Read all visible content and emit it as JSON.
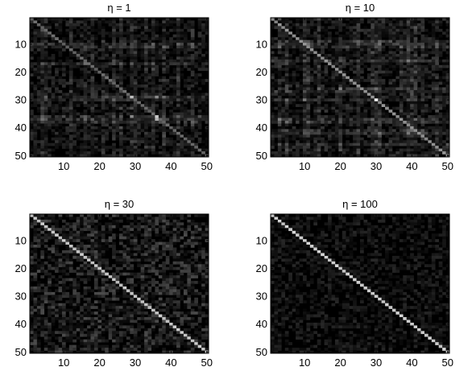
{
  "figure": {
    "background": "#ffffff",
    "colormap": "gray"
  },
  "chart_data": [
    {
      "type": "heatmap",
      "title": "η = 1",
      "xlabel": "",
      "ylabel": "",
      "size": [
        50,
        50
      ],
      "xlim": [
        0.5,
        50.5
      ],
      "ylim": [
        0.5,
        50.5
      ],
      "x_ticks": [
        10,
        20,
        30,
        40,
        50
      ],
      "y_ticks": [
        10,
        20,
        30,
        40,
        50
      ],
      "grid": false,
      "diagonal_intensity": 0.45,
      "diagonal_range": [
        0,
        0.7
      ],
      "background_range": [
        0,
        0.2
      ],
      "band_rows": [
        10,
        11,
        17,
        29,
        30,
        36,
        37,
        38
      ],
      "band_cols": [
        4,
        5,
        12,
        16,
        18,
        21,
        24,
        26,
        29,
        30,
        33,
        35,
        38,
        42,
        46
      ],
      "hot_cells": [
        [
          29,
          29,
          0.75
        ],
        [
          36,
          36,
          0.8
        ],
        [
          29,
          36,
          0.55
        ],
        [
          36,
          29,
          0.55
        ],
        [
          37,
          36,
          0.7
        ]
      ]
    },
    {
      "type": "heatmap",
      "title": "η = 10",
      "xlabel": "",
      "ylabel": "",
      "size": [
        50,
        50
      ],
      "xlim": [
        0.5,
        50.5
      ],
      "ylim": [
        0.5,
        50.5
      ],
      "x_ticks": [
        10,
        20,
        30,
        40,
        50
      ],
      "y_ticks": [
        10,
        20,
        30,
        40,
        50
      ],
      "grid": false,
      "diagonal_intensity": 0.6,
      "diagonal_range": [
        0,
        0.7
      ],
      "background_range": [
        0,
        0.22
      ],
      "band_rows": [
        9,
        10,
        11,
        16,
        26,
        27,
        30,
        37,
        38,
        41,
        42,
        46
      ],
      "band_cols": [
        3,
        5,
        10,
        11,
        14,
        20,
        25,
        29,
        30,
        31,
        37,
        39,
        40,
        41,
        43,
        47
      ],
      "hot_cells": [
        [
          30,
          30,
          1.0
        ],
        [
          10,
          10,
          0.6
        ],
        [
          10,
          11,
          0.45
        ]
      ]
    },
    {
      "type": "heatmap",
      "title": "η = 30",
      "xlabel": "",
      "ylabel": "",
      "size": [
        50,
        50
      ],
      "xlim": [
        0.5,
        50.5
      ],
      "ylim": [
        0.5,
        50.5
      ],
      "x_ticks": [
        10,
        20,
        30,
        40,
        50
      ],
      "y_ticks": [
        10,
        20,
        30,
        40,
        50
      ],
      "grid": false,
      "diagonal_intensity": 0.82,
      "diagonal_range": [
        0,
        0.7
      ],
      "background_range": [
        0,
        0.3
      ],
      "band_rows": [],
      "band_cols": [],
      "hot_cells": []
    },
    {
      "type": "heatmap",
      "title": "η = 100",
      "xlabel": "",
      "ylabel": "",
      "size": [
        50,
        50
      ],
      "xlim": [
        0.5,
        50.5
      ],
      "ylim": [
        0.5,
        50.5
      ],
      "x_ticks": [
        10,
        20,
        30,
        40,
        50
      ],
      "y_ticks": [
        10,
        20,
        30,
        40,
        50
      ],
      "grid": false,
      "diagonal_intensity": 0.85,
      "diagonal_range": [
        0,
        0.7
      ],
      "background_range": [
        0,
        0.16
      ],
      "band_rows": [],
      "band_cols": [],
      "hot_cells": []
    }
  ]
}
